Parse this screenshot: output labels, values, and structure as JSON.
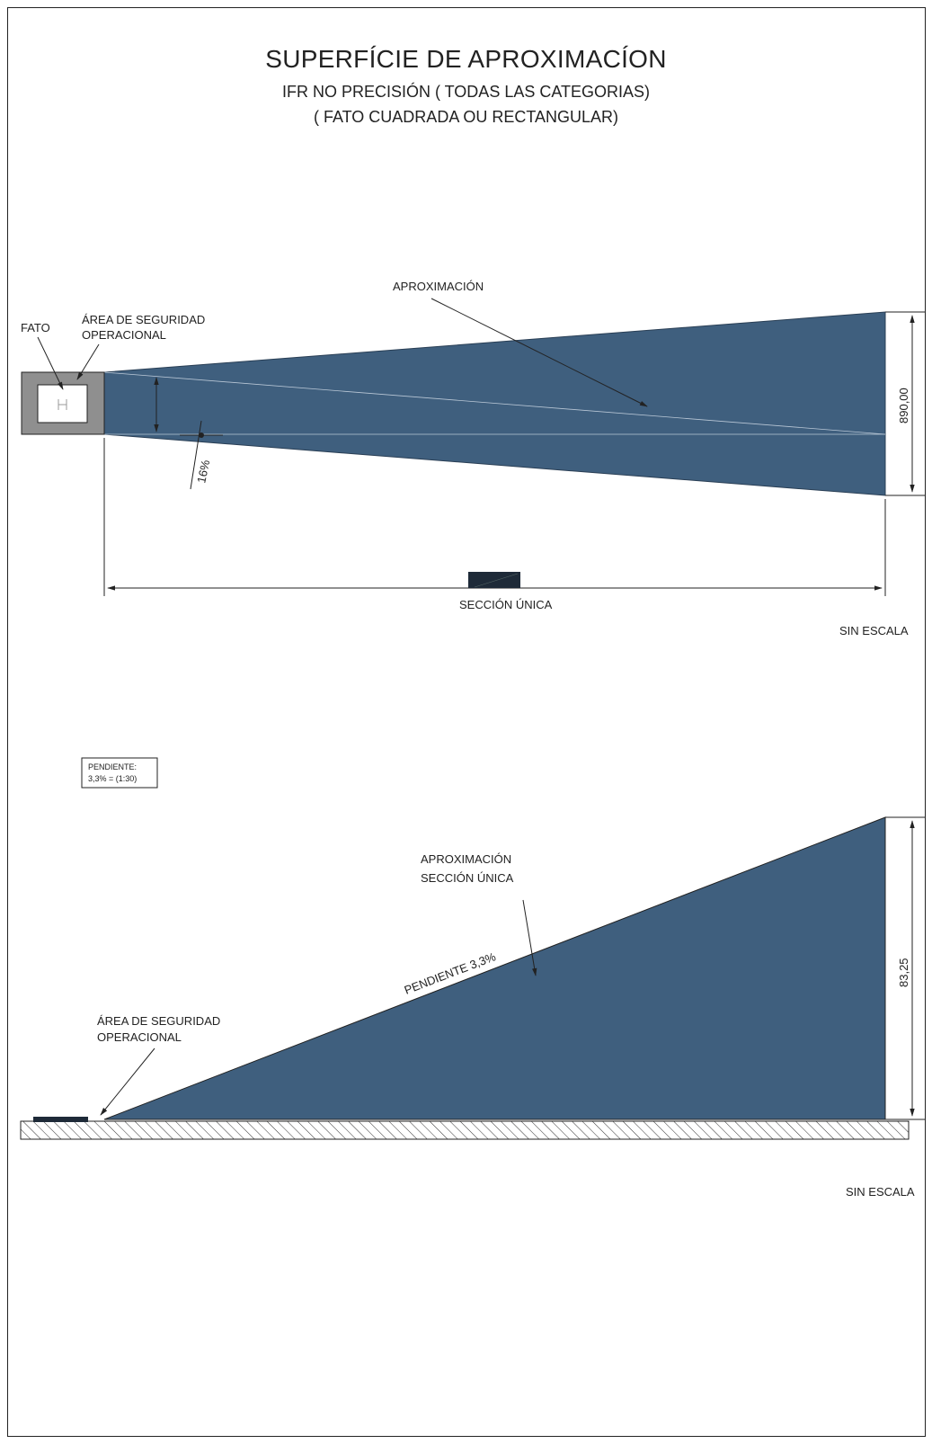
{
  "title": {
    "main": "SUPERFÍCIE DE APROXIMACÍON",
    "line2": "IFR NO PRECISIÓN (  TODAS LAS CATEGORIAS)",
    "line3": "(  FATO CUADRADA OU RECTANGULAR)"
  },
  "plan_view": {
    "label_aproximacion": "APROXIMACIÓN",
    "label_fato": "FATO",
    "label_area_line1": "ÁREA DE SEGURIDAD",
    "label_area_line2": "OPERACIONAL",
    "divergence": "16%",
    "width_dimension": "890,00",
    "section_label": "SECCIÓN ÚNICA",
    "scale_note": "SIN ESCALA"
  },
  "profile_view": {
    "slope_box_line1": "PENDIENTE:",
    "slope_box_line2": "3,3% = (1:30)",
    "label_line1": "APROXIMACIÓN",
    "label_line2": "SECCIÓN ÚNICA",
    "slope_label": "PENDIENTE 3,3%",
    "area_line1": "ÁREA DE SEGURIDAD",
    "area_line2": "OPERACIONAL",
    "height_dimension": "83,25",
    "scale_note": "SIN ESCALA"
  },
  "colors": {
    "surface_fill": "#3f5f7e",
    "area_fill": "#8f8f8f",
    "line": "#222222"
  }
}
